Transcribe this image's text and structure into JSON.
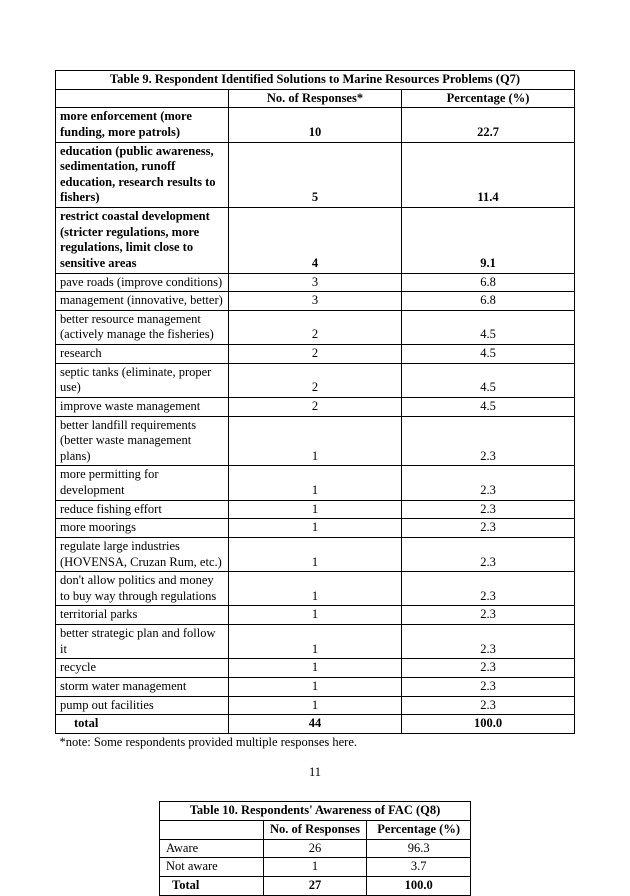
{
  "page_number": "11",
  "table9": {
    "type": "table",
    "title": "Table 9.  Respondent Identified Solutions to Marine Resources Problems (Q7)",
    "columns": [
      "",
      "No. of Responses*",
      "Percentage (%)"
    ],
    "rows": [
      {
        "label": "more enforcement (more funding, more patrols)",
        "n": "10",
        "p": "22.7",
        "bold": true
      },
      {
        "label": "education (public awareness, sedimentation, runoff education, research results to fishers)",
        "n": "5",
        "p": "11.4",
        "bold": true
      },
      {
        "label": "restrict coastal development (stricter regulations, more regulations, limit close to sensitive areas",
        "n": "4",
        "p": "9.1",
        "bold": true
      },
      {
        "label": "pave roads (improve conditions)",
        "n": "3",
        "p": "6.8",
        "bold": false
      },
      {
        "label": "management (innovative, better)",
        "n": "3",
        "p": "6.8",
        "bold": false
      },
      {
        "label": "better resource management (actively manage the fisheries)",
        "n": "2",
        "p": "4.5",
        "bold": false
      },
      {
        "label": "research",
        "n": "2",
        "p": "4.5",
        "bold": false
      },
      {
        "label": "septic tanks (eliminate, proper use)",
        "n": "2",
        "p": "4.5",
        "bold": false
      },
      {
        "label": "improve waste management",
        "n": "2",
        "p": "4.5",
        "bold": false
      },
      {
        "label": "better landfill requirements (better waste management plans)",
        "n": "1",
        "p": "2.3",
        "bold": false
      },
      {
        "label": "more permitting for development",
        "n": "1",
        "p": "2.3",
        "bold": false
      },
      {
        "label": "reduce fishing effort",
        "n": "1",
        "p": "2.3",
        "bold": false
      },
      {
        "label": "more moorings",
        "n": "1",
        "p": "2.3",
        "bold": false
      },
      {
        "label": "regulate large industries (HOVENSA, Cruzan Rum, etc.)",
        "n": "1",
        "p": "2.3",
        "bold": false
      },
      {
        "label": "don't allow politics and money to buy way through regulations",
        "n": "1",
        "p": "2.3",
        "bold": false
      },
      {
        "label": "territorial parks",
        "n": "1",
        "p": "2.3",
        "bold": false
      },
      {
        "label": "better strategic plan and follow it",
        "n": "1",
        "p": "2.3",
        "bold": false
      },
      {
        "label": "recycle",
        "n": "1",
        "p": "2.3",
        "bold": false
      },
      {
        "label": "storm water management",
        "n": "1",
        "p": "2.3",
        "bold": false
      },
      {
        "label": "pump out facilities",
        "n": "1",
        "p": "2.3",
        "bold": false
      }
    ],
    "total": {
      "label": "total",
      "n": "44",
      "p": "100.0"
    },
    "note": "*note:  Some respondents provided multiple responses here."
  },
  "table10": {
    "type": "table",
    "title": "Table 10. Respondents' Awareness of FAC (Q8)",
    "columns": [
      "",
      "No. of Responses",
      "Percentage   (%)"
    ],
    "rows": [
      {
        "label": "Aware",
        "n": "26",
        "p": "96.3"
      },
      {
        "label": "Not aware",
        "n": "1",
        "p": "3.7"
      }
    ],
    "total": {
      "label": "Total",
      "n": "27",
      "p": "100.0"
    }
  },
  "style": {
    "font_family": "Times New Roman",
    "font_size_pt": 10,
    "text_color": "#000000",
    "background_color": "#ffffff",
    "border_color": "#000000"
  }
}
